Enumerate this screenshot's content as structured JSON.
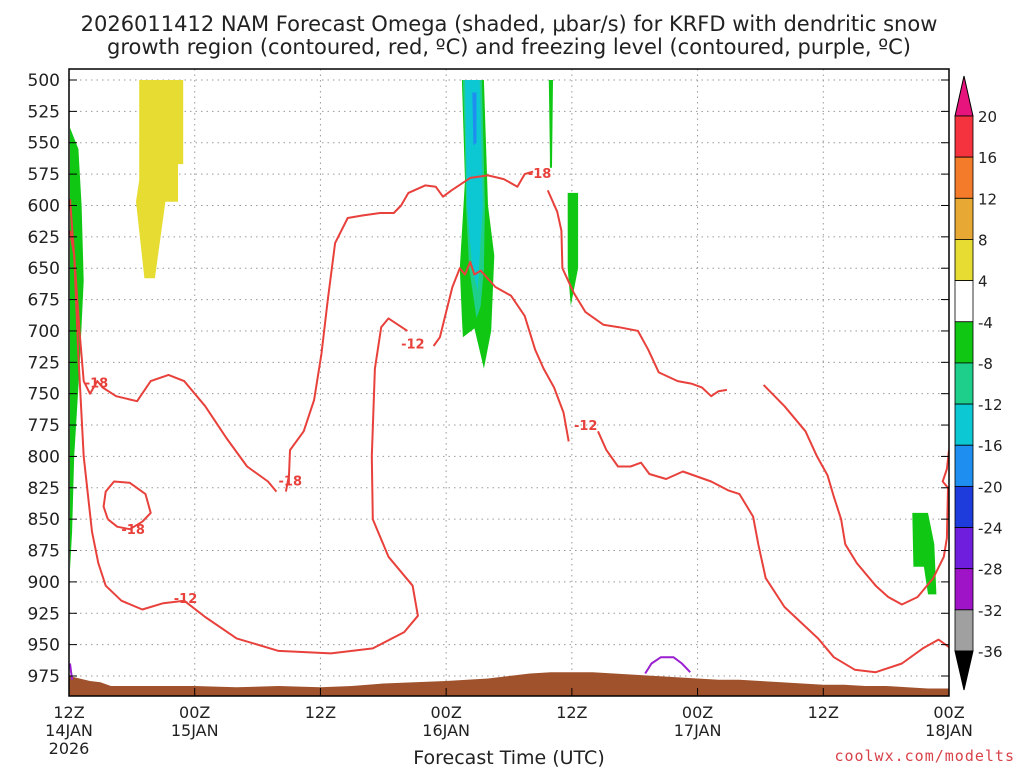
{
  "chart_data": {
    "type": "contour",
    "title_line1": "2026011412 NAM Forecast Omega (shaded, μbar/s) for KRFD with dendritic snow",
    "title_line2": "growth region (contoured, red, ºC) and freezing level (contoured, purple, ºC)",
    "xlabel": "Forecast Time (UTC)",
    "credit": "coolwx.com/modelts",
    "x_range_hours": [
      0,
      84
    ],
    "y_range_hpa": [
      500,
      990
    ],
    "y_scale": "reversed-linear",
    "y_ticks": [
      "500",
      "525",
      "550",
      "575",
      "600",
      "625",
      "650",
      "675",
      "700",
      "725",
      "750",
      "775",
      "800",
      "825",
      "850",
      "875",
      "900",
      "925",
      "950",
      "975"
    ],
    "x_ticks": [
      {
        "h": 0,
        "l1": "12Z",
        "l2": "14JAN",
        "l3": "2026"
      },
      {
        "h": 12,
        "l1": "00Z",
        "l2": "15JAN",
        "l3": ""
      },
      {
        "h": 24,
        "l1": "12Z",
        "l2": "",
        "l3": ""
      },
      {
        "h": 36,
        "l1": "00Z",
        "l2": "16JAN",
        "l3": ""
      },
      {
        "h": 48,
        "l1": "12Z",
        "l2": "",
        "l3": ""
      },
      {
        "h": 60,
        "l1": "00Z",
        "l2": "17JAN",
        "l3": ""
      },
      {
        "h": 72,
        "l1": "12Z",
        "l2": "",
        "l3": ""
      },
      {
        "h": 84,
        "l1": "00Z",
        "l2": "18JAN",
        "l3": ""
      }
    ],
    "grid": true,
    "colorbar": [
      {
        "label": "20",
        "color": "#f5333f"
      },
      {
        "label": "16",
        "color": "#f47b2a"
      },
      {
        "label": "12",
        "color": "#e8a834"
      },
      {
        "label": "8",
        "color": "#e6dc32"
      },
      {
        "label": "4",
        "color": "#ffffff"
      },
      {
        "label": "-4",
        "color": "#10c814"
      },
      {
        "label": "-8",
        "color": "#1ecf8c"
      },
      {
        "label": "-12",
        "color": "#0cc8d2"
      },
      {
        "label": "-16",
        "color": "#1e8ff0"
      },
      {
        "label": "-20",
        "color": "#1e3cdc"
      },
      {
        "label": "-24",
        "color": "#6e1edc"
      },
      {
        "label": "-28",
        "color": "#a014c8"
      },
      {
        "label": "-32",
        "color": "#a0a0a0"
      },
      {
        "label": "-36",
        "color": "#000000"
      }
    ],
    "colorbar_top_color": "#e6147c",
    "terrain_color": "#a0522d",
    "contour_color": "#e8413c",
    "freezing_color": "#9b1fd0",
    "shading": [
      {
        "value": 6,
        "color": "#e6dc32",
        "pts": [
          [
            6.7,
            500
          ],
          [
            10.9,
            500
          ],
          [
            10.9,
            567
          ],
          [
            10.4,
            567
          ],
          [
            10.4,
            597
          ],
          [
            9.2,
            597
          ],
          [
            8.2,
            658
          ],
          [
            7.2,
            658
          ],
          [
            6.4,
            597
          ],
          [
            6.7,
            580
          ]
        ]
      },
      {
        "value": -6,
        "color": "#10c814",
        "pts": [
          [
            0.1,
            538
          ],
          [
            0.9,
            555
          ],
          [
            1.2,
            600
          ],
          [
            1.4,
            660
          ],
          [
            1.0,
            730
          ],
          [
            0.5,
            800
          ],
          [
            0.3,
            860
          ],
          [
            0.1,
            890
          ]
        ]
      },
      {
        "value": -6,
        "color": "#10c814",
        "pts": [
          [
            37.5,
            500
          ],
          [
            39.6,
            500
          ],
          [
            40.0,
            600
          ],
          [
            40.6,
            640
          ],
          [
            40.3,
            700
          ],
          [
            39.6,
            730
          ],
          [
            38.7,
            698
          ],
          [
            37.6,
            705
          ],
          [
            37.5,
            690
          ],
          [
            37.3,
            650
          ],
          [
            37.8,
            580
          ]
        ]
      },
      {
        "value": -10,
        "color": "#1ecf8c",
        "pts": [
          [
            37.6,
            500
          ],
          [
            39.4,
            500
          ],
          [
            39.7,
            600
          ],
          [
            39.6,
            650
          ],
          [
            39.3,
            680
          ],
          [
            38.9,
            690
          ],
          [
            38.2,
            650
          ],
          [
            37.9,
            600
          ],
          [
            37.8,
            550
          ]
        ]
      },
      {
        "value": -12,
        "color": "#0cc8d2",
        "pts": [
          [
            37.8,
            500
          ],
          [
            39.2,
            500
          ],
          [
            39.5,
            600
          ],
          [
            39.0,
            668
          ],
          [
            38.5,
            650
          ],
          [
            38.0,
            600
          ],
          [
            37.9,
            550
          ]
        ]
      },
      {
        "value": -16,
        "color": "#1e8ff0",
        "pts": [
          [
            38.5,
            510
          ],
          [
            38.9,
            510
          ],
          [
            38.9,
            550
          ],
          [
            38.6,
            552
          ]
        ]
      },
      {
        "value": -6,
        "color": "#10c814",
        "pts": [
          [
            45.8,
            500
          ],
          [
            46.2,
            500
          ],
          [
            46.1,
            570
          ],
          [
            45.9,
            570
          ],
          [
            45.9,
            560
          ]
        ]
      },
      {
        "value": -6,
        "color": "#10c814",
        "pts": [
          [
            47.6,
            590
          ],
          [
            48.6,
            590
          ],
          [
            48.6,
            650
          ],
          [
            47.9,
            680
          ],
          [
            47.6,
            650
          ]
        ]
      },
      {
        "value": -6,
        "color": "#10c814",
        "pts": [
          [
            80.5,
            845
          ],
          [
            82.0,
            845
          ],
          [
            82.6,
            870
          ],
          [
            82.8,
            910
          ],
          [
            82.0,
            910
          ],
          [
            81.6,
            888
          ],
          [
            80.6,
            888
          ]
        ]
      }
    ],
    "contours": [
      {
        "value": -18,
        "label": "-18",
        "label_at": [
          1.5,
          745
        ],
        "pts": [
          [
            0.1,
            620
          ],
          [
            0.5,
            640
          ],
          [
            1.0,
            700
          ],
          [
            1.4,
            740
          ],
          [
            2.0,
            750
          ],
          [
            2.7,
            740
          ],
          [
            3.2,
            745
          ],
          [
            4.5,
            752
          ],
          [
            6.5,
            756
          ],
          [
            7.8,
            740
          ],
          [
            9.5,
            735
          ],
          [
            11.0,
            740
          ],
          [
            13.0,
            760
          ],
          [
            15.0,
            785
          ],
          [
            17.0,
            808
          ],
          [
            19.0,
            820
          ],
          [
            19.8,
            828
          ]
        ]
      },
      {
        "value": -18,
        "label": "-18",
        "label_at": [
          5.0,
          862
        ],
        "pts": [
          [
            3.7,
            850
          ],
          [
            3.3,
            840
          ],
          [
            3.5,
            828
          ],
          [
            4.3,
            820
          ],
          [
            5.8,
            821
          ],
          [
            7.3,
            830
          ],
          [
            7.8,
            845
          ],
          [
            7.0,
            852
          ],
          [
            5.8,
            858
          ],
          [
            4.6,
            856
          ],
          [
            3.7,
            850
          ]
        ]
      },
      {
        "value": -12,
        "label": "-12",
        "label_at": [
          10.0,
          917
        ],
        "pts": [
          [
            0.1,
            595
          ],
          [
            0.5,
            640
          ],
          [
            0.9,
            720
          ],
          [
            1.4,
            800
          ],
          [
            2.2,
            860
          ],
          [
            2.8,
            885
          ],
          [
            3.5,
            903
          ],
          [
            5.0,
            915
          ],
          [
            7.0,
            922
          ],
          [
            9.0,
            917
          ],
          [
            11.0,
            915
          ],
          [
            13.0,
            928
          ],
          [
            16.0,
            945
          ],
          [
            20.0,
            955
          ],
          [
            25.0,
            957
          ],
          [
            29.0,
            953
          ],
          [
            32.0,
            940
          ],
          [
            33.3,
            927
          ],
          [
            32.8,
            903
          ],
          [
            30.5,
            880
          ],
          [
            29.0,
            850
          ],
          [
            28.9,
            800
          ],
          [
            29.2,
            730
          ],
          [
            29.8,
            697
          ],
          [
            30.5,
            690
          ],
          [
            32.3,
            700
          ]
        ]
      },
      {
        "value": -18,
        "label": "-18",
        "label_at": [
          20.0,
          823
        ],
        "pts": [
          [
            20.7,
            828
          ],
          [
            21.0,
            815
          ],
          [
            21.1,
            795
          ],
          [
            22.4,
            780
          ],
          [
            23.4,
            755
          ],
          [
            24.1,
            718
          ],
          [
            24.7,
            675
          ],
          [
            25.4,
            630
          ],
          [
            26.6,
            610
          ],
          [
            28.0,
            608
          ],
          [
            29.7,
            606
          ],
          [
            31.0,
            606
          ],
          [
            31.7,
            600
          ],
          [
            32.4,
            590
          ],
          [
            34.0,
            584
          ],
          [
            35.0,
            585
          ],
          [
            35.7,
            593
          ],
          [
            36.5,
            588
          ],
          [
            38.3,
            578
          ],
          [
            40.0,
            576
          ],
          [
            41.5,
            579
          ],
          [
            42.8,
            585
          ],
          [
            43.5,
            575
          ],
          [
            44.3,
            573
          ]
        ]
      },
      {
        "value": -12,
        "label": "-12",
        "label_at": [
          31.7,
          714
        ],
        "pts": [
          [
            34.8,
            712
          ],
          [
            35.4,
            705
          ],
          [
            36.0,
            685
          ],
          [
            36.6,
            665
          ],
          [
            37.3,
            650
          ],
          [
            37.8,
            655
          ],
          [
            38.3,
            645
          ],
          [
            38.7,
            655
          ],
          [
            39.3,
            652
          ],
          [
            40.7,
            665
          ],
          [
            42.2,
            672
          ],
          [
            43.5,
            688
          ],
          [
            44.5,
            715
          ],
          [
            45.3,
            730
          ],
          [
            46.3,
            745
          ],
          [
            47.2,
            765
          ],
          [
            47.7,
            788
          ]
        ]
      },
      {
        "value": -18,
        "label": "-18",
        "label_at": [
          43.8,
          578
        ],
        "pts": [
          [
            45.7,
            588
          ],
          [
            46.6,
            605
          ],
          [
            47.0,
            620
          ],
          [
            47.1,
            650
          ],
          [
            48.2,
            670
          ],
          [
            49.3,
            685
          ],
          [
            51.0,
            695
          ],
          [
            52.5,
            697
          ],
          [
            54.3,
            700
          ],
          [
            55.3,
            715
          ],
          [
            56.3,
            733
          ],
          [
            58.1,
            740
          ],
          [
            59.4,
            742
          ],
          [
            60.4,
            745
          ],
          [
            61.3,
            752
          ],
          [
            62.0,
            748
          ],
          [
            62.8,
            747
          ]
        ]
      },
      {
        "value": -12,
        "label": "-12",
        "label_at": [
          48.2,
          779
        ],
        "pts": [
          [
            50.5,
            780
          ],
          [
            51.3,
            795
          ],
          [
            52.4,
            808
          ],
          [
            53.6,
            808
          ],
          [
            54.6,
            805
          ],
          [
            55.4,
            814
          ],
          [
            57.0,
            818
          ],
          [
            58.6,
            812
          ],
          [
            61.3,
            820
          ],
          [
            62.9,
            827
          ],
          [
            64.0,
            830
          ],
          [
            65.3,
            848
          ],
          [
            65.8,
            870
          ],
          [
            66.5,
            897
          ],
          [
            68.3,
            920
          ],
          [
            71.5,
            945
          ],
          [
            73.0,
            960
          ],
          [
            75.0,
            970
          ],
          [
            77.0,
            972
          ],
          [
            79.5,
            965
          ],
          [
            81.5,
            953
          ],
          [
            83.0,
            946
          ],
          [
            84.0,
            952
          ]
        ]
      },
      {
        "value": -18,
        "label": "",
        "label_at": [
          0,
          0
        ],
        "pts": [
          [
            66.3,
            743
          ],
          [
            68.3,
            760
          ],
          [
            70.3,
            780
          ],
          [
            71.4,
            800
          ],
          [
            72.4,
            815
          ],
          [
            73.0,
            832
          ],
          [
            73.7,
            850
          ],
          [
            74.1,
            870
          ],
          [
            75.2,
            885
          ],
          [
            77.0,
            903
          ],
          [
            78.2,
            912
          ],
          [
            79.5,
            918
          ],
          [
            81.0,
            912
          ],
          [
            82.5,
            897
          ],
          [
            83.5,
            880
          ],
          [
            83.8,
            865
          ],
          [
            83.9,
            825
          ],
          [
            83.4,
            820
          ],
          [
            83.8,
            810
          ],
          [
            84.0,
            795
          ]
        ]
      }
    ],
    "freezing_contours": [
      {
        "value": 0,
        "pts": [
          [
            55.0,
            973
          ],
          [
            55.6,
            965
          ],
          [
            56.5,
            960
          ],
          [
            57.7,
            960
          ],
          [
            58.5,
            965
          ],
          [
            59.3,
            972
          ]
        ]
      },
      {
        "value": 0,
        "pts": [
          [
            0.1,
            965
          ],
          [
            0.3,
            978
          ]
        ]
      }
    ],
    "terrain_top": [
      [
        0,
        975
      ],
      [
        1,
        977
      ],
      [
        2,
        979
      ],
      [
        3,
        980
      ],
      [
        4,
        983
      ],
      [
        8,
        983
      ],
      [
        12,
        983
      ],
      [
        16,
        984
      ],
      [
        20,
        983
      ],
      [
        24,
        984
      ],
      [
        27,
        983
      ],
      [
        30,
        981
      ],
      [
        33,
        980
      ],
      [
        36,
        979
      ],
      [
        38,
        978
      ],
      [
        40,
        977
      ],
      [
        42,
        975
      ],
      [
        44,
        973
      ],
      [
        46,
        972
      ],
      [
        48,
        972
      ],
      [
        50,
        972
      ],
      [
        52,
        973
      ],
      [
        54,
        974
      ],
      [
        56,
        975
      ],
      [
        58,
        976
      ],
      [
        60,
        977
      ],
      [
        62,
        978
      ],
      [
        64,
        978
      ],
      [
        66,
        979
      ],
      [
        68,
        980
      ],
      [
        70,
        981
      ],
      [
        72,
        982
      ],
      [
        74,
        982
      ],
      [
        76,
        983
      ],
      [
        78,
        983
      ],
      [
        80,
        984
      ],
      [
        82,
        985
      ],
      [
        84,
        985
      ]
    ]
  }
}
